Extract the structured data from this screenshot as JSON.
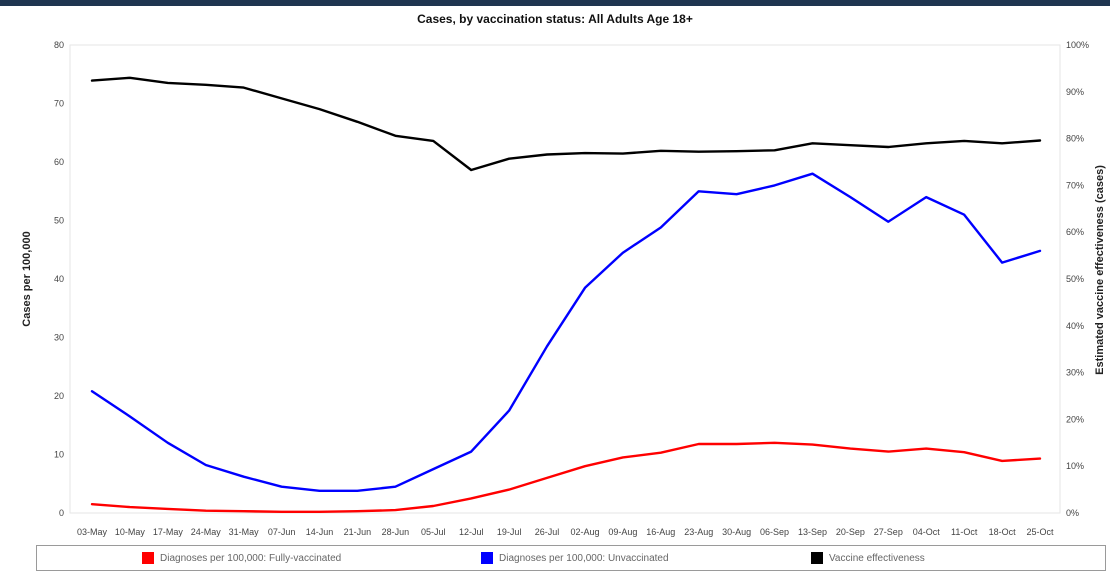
{
  "chart_data": {
    "type": "line",
    "title": "Cases, by vaccination status: All Adults Age 18+",
    "ylabel": "Cases per 100,000",
    "ylabel_right": "Estimated vaccine effectiveness (cases)",
    "ylim": [
      0,
      80
    ],
    "ylim_right": [
      0,
      1
    ],
    "yticks": [
      "0",
      "10",
      "20",
      "30",
      "40",
      "50",
      "60",
      "70",
      "80"
    ],
    "yticks_right": [
      "0%",
      "10%",
      "20%",
      "30%",
      "40%",
      "50%",
      "60%",
      "70%",
      "80%",
      "90%",
      "100%"
    ],
    "categories": [
      "03-May",
      "10-May",
      "17-May",
      "24-May",
      "31-May",
      "07-Jun",
      "14-Jun",
      "21-Jun",
      "28-Jun",
      "05-Jul",
      "12-Jul",
      "19-Jul",
      "26-Jul",
      "02-Aug",
      "09-Aug",
      "16-Aug",
      "23-Aug",
      "30-Aug",
      "06-Sep",
      "13-Sep",
      "20-Sep",
      "27-Sep",
      "04-Oct",
      "11-Oct",
      "18-Oct",
      "25-Oct"
    ],
    "grid": false,
    "legend_position": "bottom",
    "series": [
      {
        "name": "Diagnoses per 100,000: Fully-vaccinated",
        "axis": "left",
        "color": "#ff0000",
        "values": [
          1.5,
          1.0,
          0.7,
          0.4,
          0.3,
          0.2,
          0.2,
          0.3,
          0.5,
          1.2,
          2.5,
          4.0,
          6.0,
          8.0,
          9.5,
          10.3,
          11.8,
          11.8,
          12.0,
          11.7,
          11.0,
          10.5,
          11.0,
          10.4,
          8.9,
          9.3
        ]
      },
      {
        "name": "Diagnoses per 100,000: Unvaccinated",
        "axis": "left",
        "color": "#0000ff",
        "values": [
          20.8,
          16.5,
          12.0,
          8.2,
          6.2,
          4.5,
          3.8,
          3.8,
          4.5,
          7.5,
          10.5,
          17.5,
          28.5,
          38.5,
          44.5,
          48.8,
          55.0,
          54.5,
          56.0,
          58.0,
          54.0,
          49.8,
          54.0,
          51.0,
          42.8,
          44.8
        ]
      },
      {
        "name": "Vaccine effectiveness",
        "axis": "right",
        "color": "#000000",
        "values": [
          0.924,
          0.93,
          0.919,
          0.915,
          0.909,
          0.886,
          0.863,
          0.836,
          0.806,
          0.795,
          0.733,
          0.757,
          0.766,
          0.769,
          0.768,
          0.774,
          0.772,
          0.773,
          0.775,
          0.79,
          0.786,
          0.782,
          0.79,
          0.795,
          0.79,
          0.796
        ]
      }
    ]
  }
}
